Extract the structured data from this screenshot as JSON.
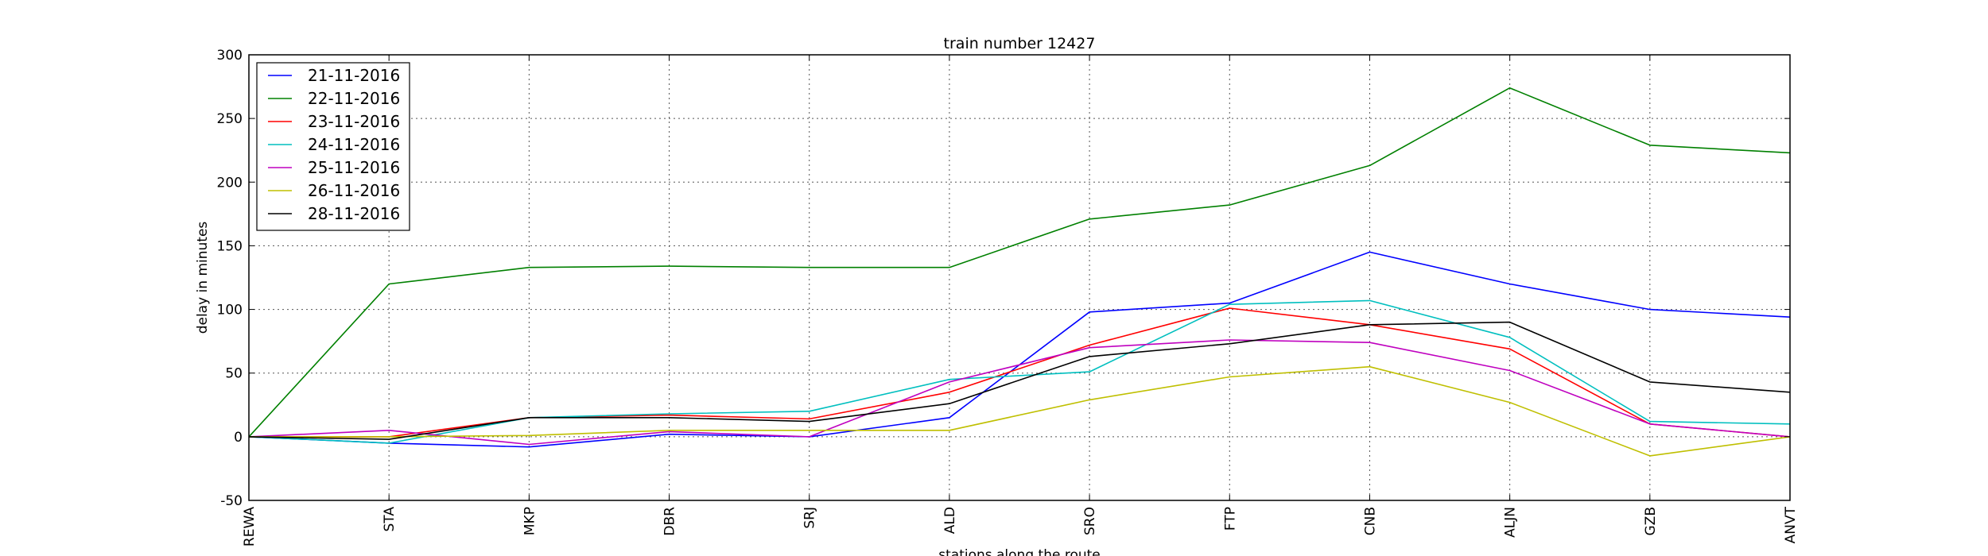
{
  "chart_data": {
    "type": "line",
    "title": "train number 12427",
    "xlabel": "stations along the route",
    "ylabel": "delay in minutes",
    "categories": [
      "REWA",
      "STA",
      "MKP",
      "DBR",
      "SRJ",
      "ALD",
      "SRO",
      "FTP",
      "CNB",
      "ALJN",
      "GZB",
      "ANVT"
    ],
    "ylim": [
      -50,
      300
    ],
    "yticks": [
      -50,
      0,
      50,
      100,
      150,
      200,
      250,
      300
    ],
    "grid": true,
    "legend_position": "top-left",
    "series": [
      {
        "name": "21-11-2016",
        "color": "#0000ff",
        "values": [
          0,
          -5,
          -8,
          2,
          0,
          15,
          98,
          105,
          145,
          120,
          100,
          94
        ]
      },
      {
        "name": "22-11-2016",
        "color": "#008000",
        "values": [
          0,
          120,
          133,
          134,
          133,
          133,
          171,
          182,
          213,
          274,
          229,
          223
        ]
      },
      {
        "name": "23-11-2016",
        "color": "#ff0000",
        "values": [
          0,
          0,
          15,
          17,
          14,
          35,
          72,
          101,
          88,
          69,
          10,
          0
        ]
      },
      {
        "name": "24-11-2016",
        "color": "#00bfbf",
        "values": [
          0,
          -5,
          15,
          18,
          20,
          45,
          51,
          104,
          107,
          78,
          12,
          10
        ]
      },
      {
        "name": "25-11-2016",
        "color": "#bf00bf",
        "values": [
          0,
          5,
          -6,
          4,
          0,
          43,
          70,
          76,
          74,
          52,
          10,
          0
        ]
      },
      {
        "name": "26-11-2016",
        "color": "#bfbf00",
        "values": [
          0,
          0,
          1,
          5,
          5,
          5,
          29,
          47,
          55,
          27,
          -15,
          0
        ]
      },
      {
        "name": "28-11-2016",
        "color": "#000000",
        "values": [
          0,
          -2,
          15,
          15,
          12,
          26,
          63,
          73,
          88,
          90,
          43,
          35
        ]
      }
    ]
  }
}
